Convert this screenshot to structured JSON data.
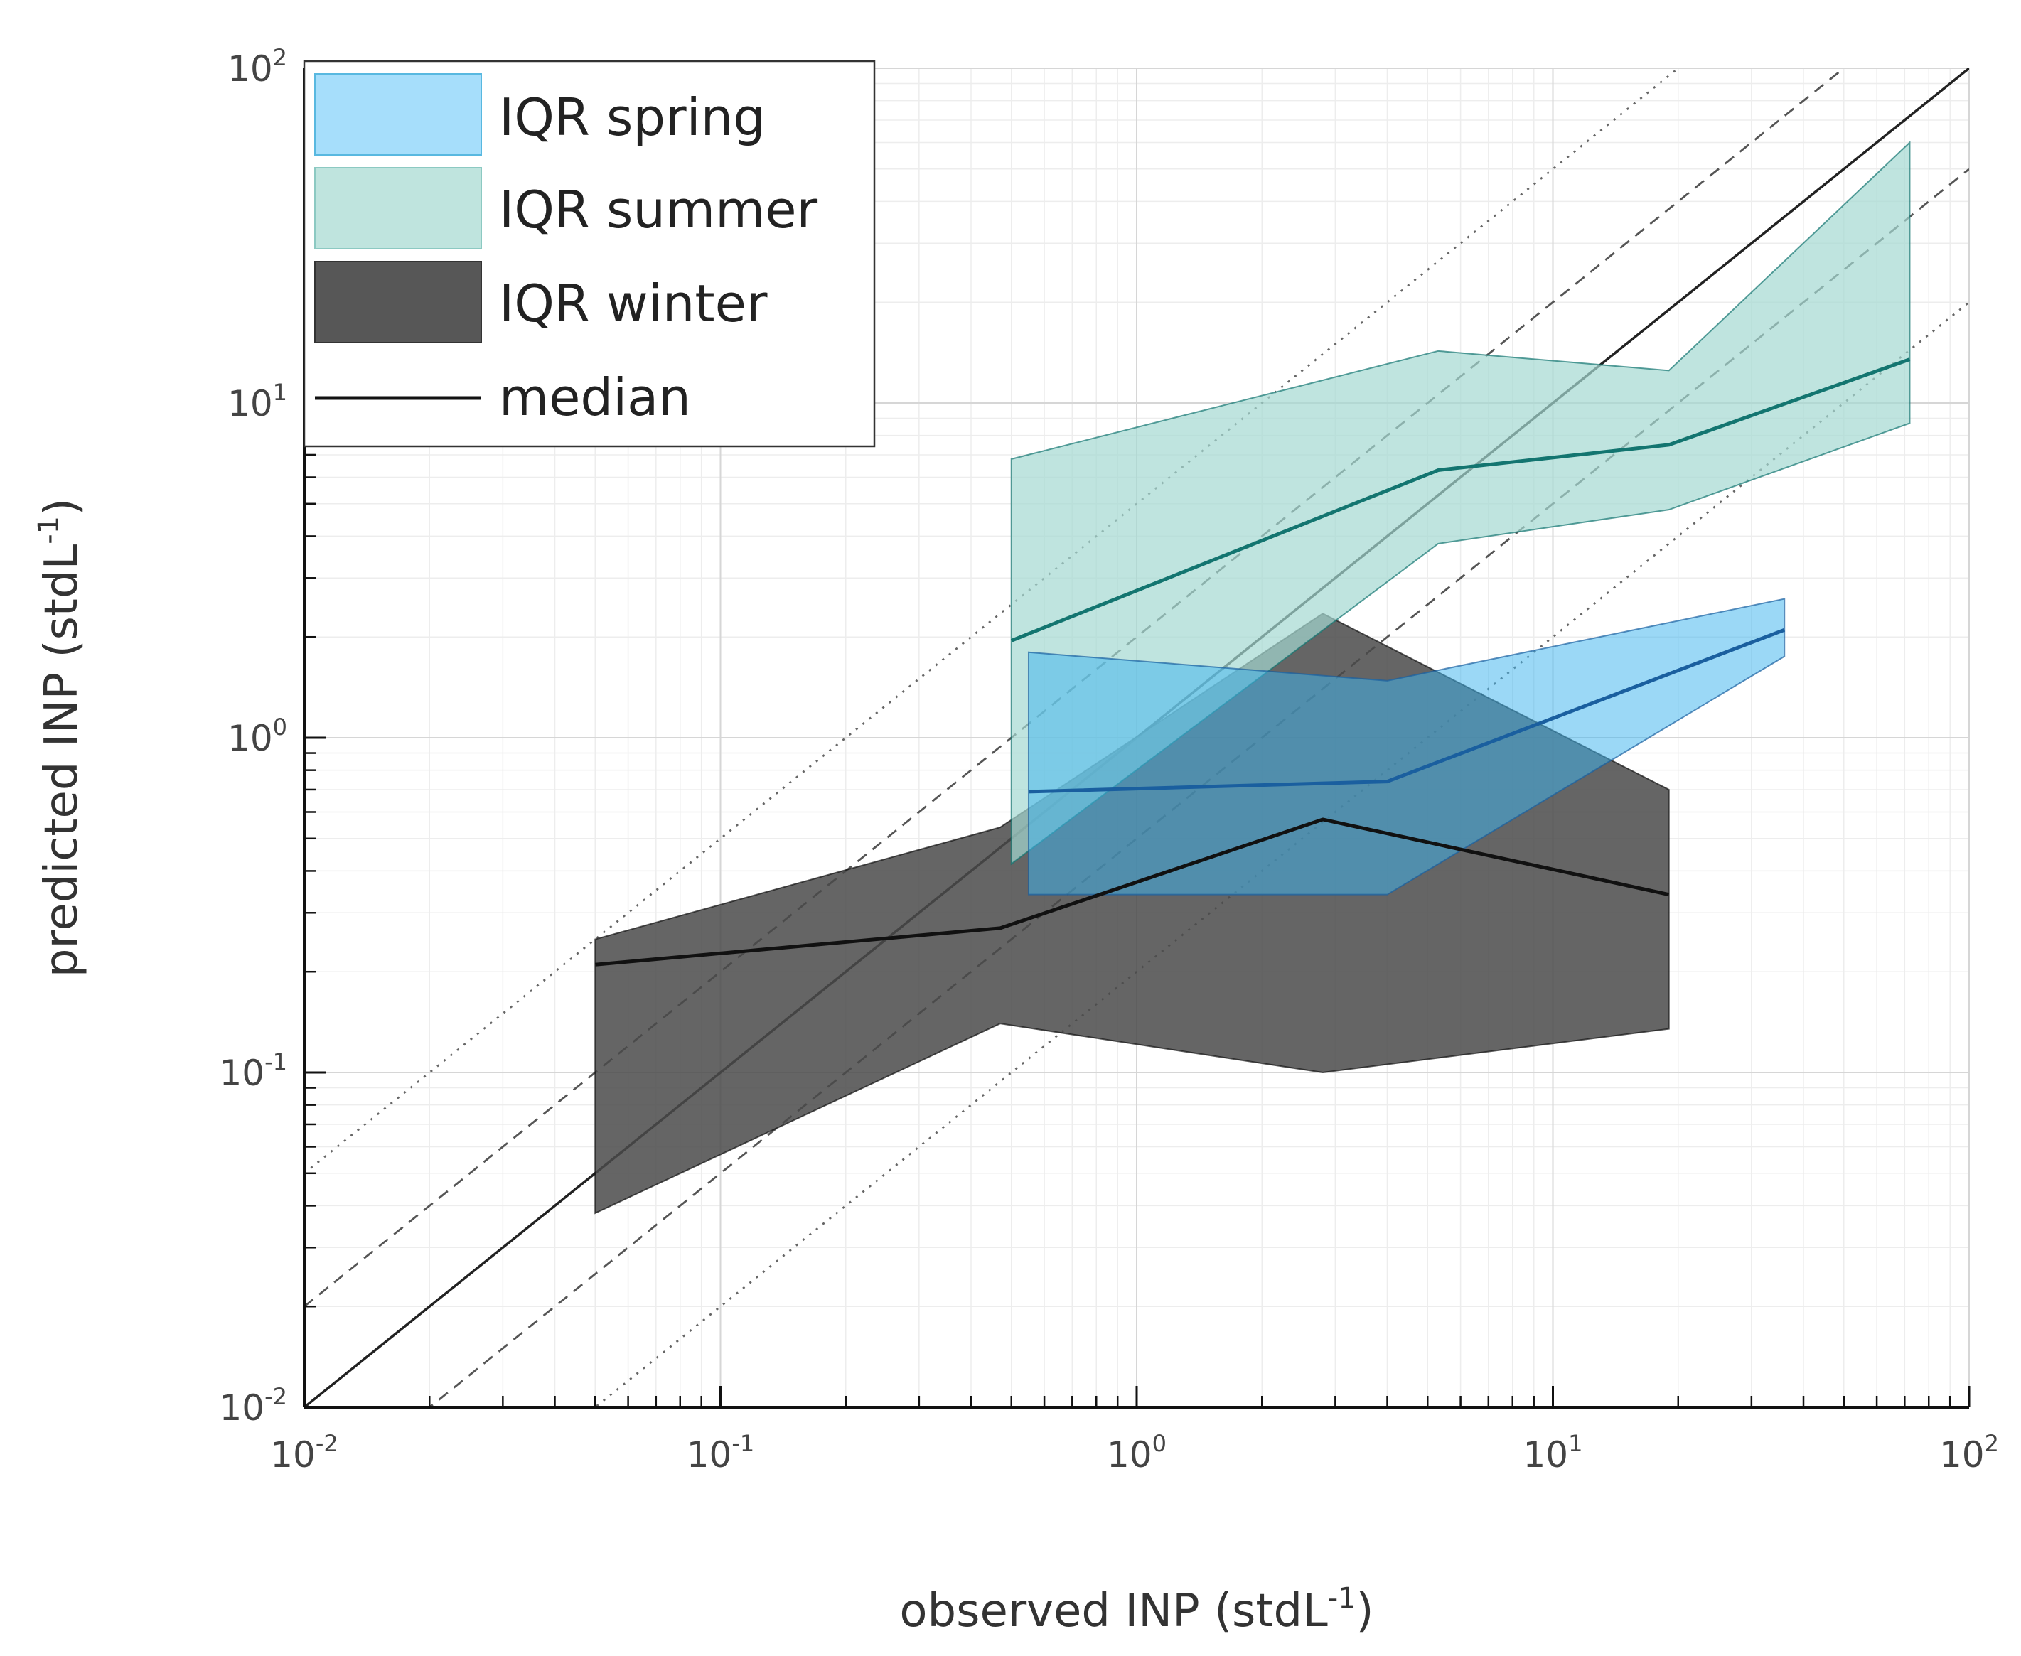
{
  "chart_data": {
    "type": "line",
    "scale": "log-log",
    "title": "",
    "xlabel": {
      "base": "observed INP (stdL",
      "sup": "-1",
      "close": ")"
    },
    "ylabel": {
      "base": "predicted INP (stdL",
      "sup": "-1",
      "close": ")"
    },
    "xlim": [
      0.01,
      100
    ],
    "ylim": [
      0.01,
      100
    ],
    "x_ticks": [
      {
        "value": 0.01,
        "base": "10",
        "exp": "-2"
      },
      {
        "value": 0.1,
        "base": "10",
        "exp": "-1"
      },
      {
        "value": 1,
        "base": "10",
        "exp": "0"
      },
      {
        "value": 10,
        "base": "10",
        "exp": "1"
      },
      {
        "value": 100,
        "base": "10",
        "exp": "2"
      }
    ],
    "y_ticks": [
      {
        "value": 0.01,
        "base": "10",
        "exp": "-2"
      },
      {
        "value": 0.1,
        "base": "10",
        "exp": "-1"
      },
      {
        "value": 1,
        "base": "10",
        "exp": "0"
      },
      {
        "value": 10,
        "base": "10",
        "exp": "1"
      },
      {
        "value": 100,
        "base": "10",
        "exp": "2"
      }
    ],
    "grid": true,
    "reference_lines": [
      {
        "name": "ratio-1-to-1",
        "factor": 1,
        "style": "solid"
      },
      {
        "name": "ratio-2x-upper",
        "factor": 2,
        "style": "dashed"
      },
      {
        "name": "ratio-2x-lower",
        "factor": 0.5,
        "style": "dashed"
      },
      {
        "name": "ratio-5x-upper",
        "factor": 5,
        "style": "dotted"
      },
      {
        "name": "ratio-5x-lower",
        "factor": 0.2,
        "style": "dotted"
      }
    ],
    "series": [
      {
        "name": "winter",
        "legend_label": "IQR winter",
        "fill_color": "#4a4a4a",
        "fill_opacity": 0.85,
        "line_color": "#111111",
        "x": [
          0.05,
          0.47,
          2.8,
          19
        ],
        "median": [
          0.21,
          0.27,
          0.57,
          0.34
        ],
        "q25": [
          0.038,
          0.14,
          0.1,
          0.135
        ],
        "q75": [
          0.25,
          0.54,
          2.35,
          0.7
        ]
      },
      {
        "name": "summer",
        "legend_label": "IQR summer",
        "fill_color": "#a4d8d2",
        "fill_opacity": 0.7,
        "line_color": "#137570",
        "x": [
          0.5,
          5.3,
          19,
          72
        ],
        "median": [
          1.95,
          6.3,
          7.5,
          13.5
        ],
        "q25": [
          0.42,
          3.8,
          4.8,
          8.7
        ],
        "q75": [
          6.8,
          14.3,
          12.5,
          60
        ]
      },
      {
        "name": "spring",
        "legend_label": "IQR spring",
        "fill_color": "#3fb4ee",
        "fill_opacity": 0.52,
        "line_color": "#1a5f9f",
        "x": [
          0.55,
          4,
          36
        ],
        "median": [
          0.69,
          0.74,
          2.1
        ],
        "q25": [
          0.34,
          0.34,
          1.75
        ],
        "q75": [
          1.8,
          1.48,
          2.6
        ]
      }
    ],
    "legend": {
      "position": "top-left",
      "entries": [
        {
          "label": "IQR spring",
          "type": "patch",
          "color": "#a6defb",
          "edge": "#58b8e0"
        },
        {
          "label": "IQR summer",
          "type": "patch",
          "color": "#bfe4de",
          "edge": "#8cc9c2"
        },
        {
          "label": "IQR winter",
          "type": "patch",
          "color": "#575757",
          "edge": "#333333"
        },
        {
          "label": "median",
          "type": "line",
          "color": "#111111"
        }
      ]
    }
  }
}
